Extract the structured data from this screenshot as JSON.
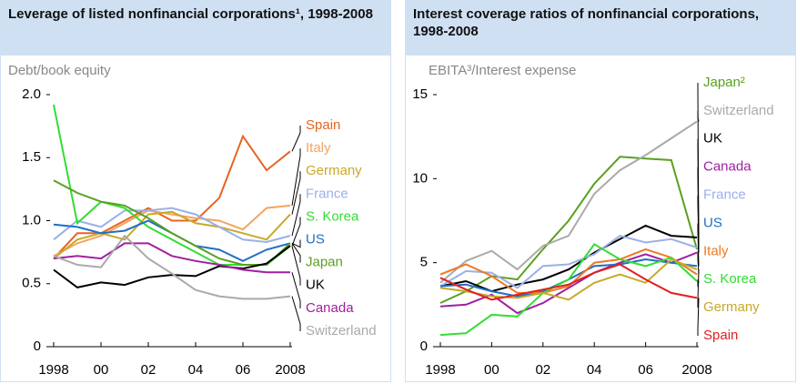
{
  "chart_data": [
    {
      "type": "line",
      "title": "Leverage of listed nonfinancial corporations¹, 1998-2008",
      "y_label": "Debt/book equity",
      "x": [
        1998,
        1999,
        2000,
        2001,
        2002,
        2003,
        2004,
        2005,
        2006,
        2007,
        2008
      ],
      "xlim": [
        1998,
        2008
      ],
      "xticks": [
        1998,
        {
          "value": 2000,
          "label": "00"
        },
        {
          "value": 2002,
          "label": "02"
        },
        {
          "value": 2004,
          "label": "04"
        },
        {
          "value": 2006,
          "label": "06"
        },
        2008
      ],
      "ylim": [
        0,
        2
      ],
      "yticks": [
        0,
        0.5,
        {
          "value": 1,
          "label": "1.0"
        },
        1.5,
        {
          "value": 2,
          "label": "2.0"
        }
      ],
      "series": [
        {
          "name": "Spain",
          "color": "#e8641e",
          "values": [
            0.7,
            0.9,
            0.9,
            1.0,
            1.1,
            1.0,
            1.0,
            1.18,
            1.67,
            1.4,
            1.55
          ]
        },
        {
          "name": "Italy",
          "color": "#f4a460",
          "values": [
            0.72,
            0.82,
            0.88,
            0.98,
            1.08,
            1.05,
            1.02,
            1.0,
            0.93,
            1.1,
            1.12
          ]
        },
        {
          "name": "Germany",
          "color": "#c8a82a",
          "values": [
            0.7,
            0.85,
            0.9,
            0.85,
            1.05,
            1.07,
            0.98,
            0.95,
            0.9,
            0.85,
            1.05
          ]
        },
        {
          "name": "France",
          "color": "#9ab0e8",
          "values": [
            0.85,
            1.0,
            0.95,
            1.08,
            1.08,
            1.1,
            1.05,
            0.95,
            0.85,
            0.83,
            0.88
          ]
        },
        {
          "name": "S. Korea",
          "color": "#33dd33",
          "values": [
            1.92,
            0.98,
            1.15,
            1.1,
            0.95,
            0.85,
            0.75,
            0.65,
            0.65,
            0.65,
            0.8
          ]
        },
        {
          "name": "US",
          "color": "#1f6fc6",
          "values": [
            0.97,
            0.95,
            0.9,
            0.92,
            1.0,
            0.9,
            0.8,
            0.77,
            0.68,
            0.77,
            0.82
          ]
        },
        {
          "name": "Japan",
          "color": "#5aa020",
          "values": [
            1.32,
            1.22,
            1.15,
            1.12,
            1.02,
            0.9,
            0.8,
            0.7,
            0.65,
            0.65,
            0.82
          ]
        },
        {
          "name": "UK",
          "color": "#000000",
          "values": [
            0.61,
            0.47,
            0.51,
            0.49,
            0.55,
            0.57,
            0.56,
            0.64,
            0.62,
            0.66,
            0.8
          ]
        },
        {
          "name": "Canada",
          "color": "#a020a0",
          "values": [
            0.7,
            0.72,
            0.7,
            0.82,
            0.82,
            0.72,
            0.68,
            0.65,
            0.61,
            0.59,
            0.59
          ]
        },
        {
          "name": "Switzerland",
          "color": "#aaaaaa",
          "values": [
            0.72,
            0.65,
            0.63,
            0.88,
            0.7,
            0.58,
            0.45,
            0.4,
            0.38,
            0.38,
            0.4
          ]
        }
      ]
    },
    {
      "type": "line",
      "title": "Interest coverage ratios of nonfinancial corporations, 1998-2008",
      "y_label": "EBITA³/Interest expense",
      "x": [
        1998,
        1999,
        2000,
        2001,
        2002,
        2003,
        2004,
        2005,
        2006,
        2007,
        2008
      ],
      "xlim": [
        1998,
        2008
      ],
      "xticks": [
        1998,
        {
          "value": 2000,
          "label": "00"
        },
        {
          "value": 2002,
          "label": "02"
        },
        {
          "value": 2004,
          "label": "04"
        },
        {
          "value": 2006,
          "label": "06"
        },
        2008
      ],
      "ylim": [
        0,
        15
      ],
      "yticks": [
        0,
        5,
        10,
        15
      ],
      "series": [
        {
          "name": "Japan²",
          "color": "#5aa020",
          "values": [
            2.6,
            3.3,
            4.2,
            4.0,
            5.8,
            7.5,
            9.7,
            11.3,
            11.2,
            11.1,
            5.8
          ]
        },
        {
          "name": "Switzerland",
          "color": "#aaaaaa",
          "values": [
            3.8,
            5.1,
            5.7,
            4.6,
            6.0,
            6.6,
            9.1,
            10.5,
            11.4,
            12.4,
            13.4
          ]
        },
        {
          "name": "UK",
          "color": "#000000",
          "values": [
            3.6,
            3.9,
            3.3,
            3.7,
            4.0,
            4.6,
            5.6,
            6.4,
            7.2,
            6.6,
            6.5
          ]
        },
        {
          "name": "Canada",
          "color": "#a020a0",
          "values": [
            2.4,
            2.5,
            3.1,
            2.0,
            2.6,
            3.5,
            4.4,
            5.0,
            5.5,
            5.0,
            5.6
          ]
        },
        {
          "name": "France",
          "color": "#9ab0e8",
          "values": [
            3.6,
            4.5,
            4.4,
            3.5,
            4.8,
            4.9,
            5.5,
            6.6,
            6.2,
            6.4,
            5.9
          ]
        },
        {
          "name": "US",
          "color": "#1f6fc6",
          "values": [
            3.6,
            3.7,
            3.3,
            3.0,
            3.3,
            4.0,
            4.8,
            4.9,
            5.2,
            5.0,
            4.8
          ]
        },
        {
          "name": "Italy",
          "color": "#f07820",
          "values": [
            4.3,
            4.9,
            4.2,
            3.2,
            3.2,
            3.6,
            5.0,
            5.2,
            5.8,
            5.3,
            4.3
          ]
        },
        {
          "name": "S. Korea",
          "color": "#33dd33",
          "values": [
            0.7,
            0.8,
            1.9,
            1.8,
            3.2,
            4.0,
            6.1,
            5.2,
            4.8,
            5.3,
            3.9
          ]
        },
        {
          "name": "Germany",
          "color": "#c8a82a",
          "values": [
            3.5,
            3.3,
            3.0,
            2.9,
            3.2,
            2.8,
            3.8,
            4.3,
            3.8,
            5.2,
            4.6
          ]
        },
        {
          "name": "Spain",
          "color": "#e02020",
          "values": [
            4.1,
            3.4,
            2.8,
            3.1,
            3.4,
            3.7,
            4.4,
            4.9,
            4.0,
            3.2,
            2.9
          ]
        }
      ]
    }
  ]
}
